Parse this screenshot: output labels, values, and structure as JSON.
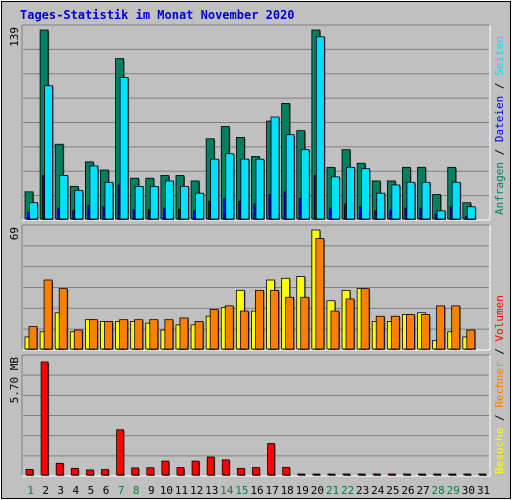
{
  "chart_data": {
    "type": "bar",
    "title": "Tages-Statistik im Monat November 2020",
    "days": [
      "1",
      "2",
      "3",
      "4",
      "5",
      "6",
      "7",
      "8",
      "9",
      "10",
      "11",
      "12",
      "13",
      "14",
      "15",
      "16",
      "17",
      "18",
      "19",
      "20",
      "21",
      "22",
      "23",
      "24",
      "25",
      "26",
      "27",
      "28",
      "29",
      "30",
      "31"
    ],
    "weekend_days": [
      "1",
      "7",
      "8",
      "14",
      "15",
      "21",
      "22",
      "28",
      "29"
    ],
    "colors": {
      "weekday_label": "#000000",
      "weekend_label": "#008040",
      "plot_bg": "#c0c0c0",
      "anfragen": "#008060",
      "dateien": "#0000ff",
      "seiten": "#00e0ff",
      "besuche": "#ffff00",
      "rechner": "#ff8000",
      "volumen": "#ff0000"
    },
    "panels": [
      {
        "id": "hits",
        "ytick_label": "139",
        "ymax": 139,
        "series": [
          {
            "name": "Anfragen",
            "color": "#008060",
            "values": [
              20,
              139,
              55,
              24,
              42,
              36,
              118,
              30,
              30,
              32,
              32,
              28,
              59,
              68,
              60,
              46,
              72,
              85,
              65,
              139,
              38,
              51,
              41,
              28,
              28,
              38,
              38,
              18,
              38,
              12,
              0
            ]
          },
          {
            "name": "Dateien",
            "color": "#0000ff",
            "values": [
              5,
              32,
              8,
              6,
              10,
              9,
              25,
              7,
              7,
              8,
              7,
              6,
              13,
              15,
              13,
              11,
              18,
              20,
              15,
              32,
              8,
              11,
              9,
              6,
              6,
              8,
              8,
              4,
              9,
              2,
              0
            ]
          },
          {
            "name": "Seiten",
            "color": "#00e0ff",
            "values": [
              12,
              98,
              32,
              21,
              39,
              27,
              104,
              24,
              24,
              28,
              24,
              19,
              44,
              48,
              44,
              44,
              75,
              62,
              51,
              134,
              31,
              38,
              37,
              19,
              25,
              27,
              27,
              6,
              27,
              9,
              0
            ]
          }
        ]
      },
      {
        "id": "visits",
        "ytick_label": "69",
        "ymax": 69,
        "series": [
          {
            "name": "Besuche",
            "color": "#ffff00",
            "values": [
              7,
              10,
              21,
              10,
              17,
              16,
              16,
              16,
              15,
              11,
              14,
              14,
              19,
              24,
              34,
              22,
              40,
              41,
              42,
              69,
              28,
              34,
              35,
              16,
              16,
              20,
              21,
              5,
              10,
              7,
              0
            ]
          },
          {
            "name": "Rechner",
            "color": "#ff8000",
            "values": [
              13,
              40,
              35,
              11,
              17,
              16,
              17,
              17,
              17,
              17,
              18,
              16,
              23,
              25,
              22,
              34,
              34,
              30,
              30,
              64,
              22,
              29,
              35,
              19,
              19,
              20,
              20,
              25,
              25,
              11,
              0
            ]
          }
        ]
      },
      {
        "id": "volume",
        "ytick_label": "5.70 MB",
        "ymax": 5.7,
        "series": [
          {
            "name": "Volumen",
            "color": "#ff0000",
            "values": [
              0.28,
              5.6,
              0.58,
              0.33,
              0.25,
              0.27,
              2.24,
              0.35,
              0.36,
              0.69,
              0.37,
              0.69,
              0.89,
              0.75,
              0.33,
              0.37,
              1.56,
              0.38,
              0.05,
              0.05,
              0.05,
              0.05,
              0.05,
              0.05,
              0.05,
              0.05,
              0.05,
              0.05,
              0.05,
              0.05,
              0.05
            ]
          }
        ]
      }
    ],
    "legend": {
      "top": [
        {
          "text": "Anfragen",
          "color": "#008060"
        },
        {
          "text": " / ",
          "color": "#000000"
        },
        {
          "text": "Dateien",
          "color": "#0000ff"
        },
        {
          "text": " / ",
          "color": "#000000"
        },
        {
          "text": "Seiten",
          "color": "#00e0ff"
        }
      ],
      "bottom": [
        {
          "text": "Besuche",
          "color": "#ffff00"
        },
        {
          "text": " / ",
          "color": "#000000"
        },
        {
          "text": "Rechner",
          "color": "#ff8000"
        },
        {
          "text": " / ",
          "color": "#000000"
        },
        {
          "text": "Volumen",
          "color": "#ff0000"
        }
      ]
    }
  }
}
